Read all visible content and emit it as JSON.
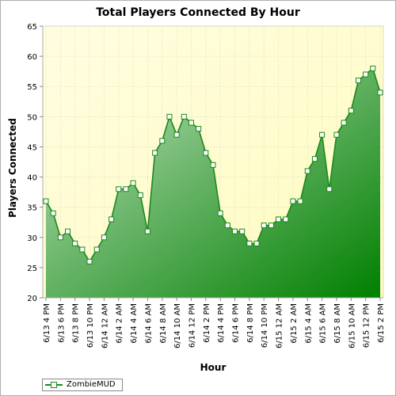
{
  "chart_data": {
    "type": "area",
    "title": "Total Players Connected By Hour",
    "xlabel": "Hour",
    "ylabel": "Players Connected",
    "ylim": [
      20,
      65
    ],
    "yticks": [
      20,
      25,
      30,
      35,
      40,
      45,
      50,
      55,
      60,
      65
    ],
    "grid": true,
    "legend_position": "bottom-left",
    "xtick_labels": [
      "6/13 4 PM",
      "6/13 6 PM",
      "6/13 8 PM",
      "6/13 10 PM",
      "6/14 12 AM",
      "6/14 2 AM",
      "6/14 4 AM",
      "6/14 6 AM",
      "6/14 8 AM",
      "6/14 10 AM",
      "6/14 12 PM",
      "6/14 2 PM",
      "6/14 4 PM",
      "6/14 6 PM",
      "6/14 8 PM",
      "6/14 10 PM",
      "6/15 12 AM",
      "6/15 2 AM",
      "6/15 4 AM",
      "6/15 6 AM",
      "6/15 8 AM",
      "6/15 10 AM",
      "6/15 12 PM",
      "6/15 2 PM"
    ],
    "series": [
      {
        "name": "ZombieMUD",
        "color": "#1a8a1a",
        "values": [
          36,
          34,
          30,
          31,
          29,
          28,
          26,
          28,
          30,
          33,
          38,
          38,
          39,
          37,
          31,
          44,
          46,
          50,
          47,
          50,
          49,
          48,
          44,
          42,
          34,
          32,
          31,
          31,
          29,
          29,
          32,
          32,
          33,
          33,
          36,
          36,
          41,
          43,
          47,
          38,
          47,
          49,
          51,
          56,
          57,
          58,
          54
        ]
      }
    ]
  }
}
